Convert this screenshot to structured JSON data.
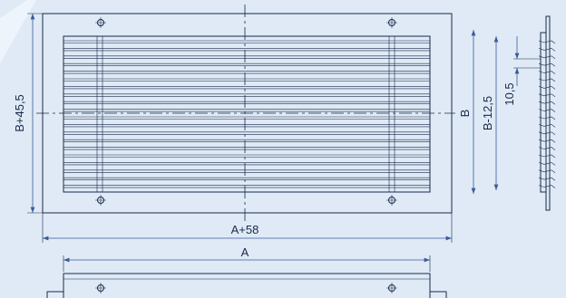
{
  "dimensions": {
    "overall_height": "B+45,5",
    "nominal_height": "B",
    "inner_height": "B-12,5",
    "slat_pitch": "10,5",
    "overall_width": "A+58",
    "nominal_width": "A"
  }
}
